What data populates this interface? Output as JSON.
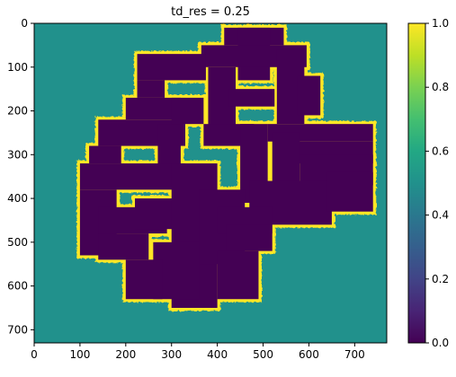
{
  "chart_data": {
    "type": "heatmap",
    "title": "td_res = 0.25",
    "xlabel": "",
    "ylabel": "",
    "x_range": [
      0,
      770
    ],
    "y_range": [
      0,
      730
    ],
    "y_inverted": true,
    "x_ticks": [
      0,
      100,
      200,
      300,
      400,
      500,
      600,
      700
    ],
    "y_ticks": [
      0,
      100,
      200,
      300,
      400,
      500,
      600,
      700
    ],
    "value_range": [
      0,
      1
    ],
    "colormap": "viridis",
    "colors": {
      "background": "#21918c",
      "free_space": "#440154",
      "boundary": "#fde725"
    },
    "levels": {
      "background": 0.5,
      "free_space": 0.0,
      "boundary": 1.0
    },
    "colorbar": {
      "ticks": [
        0.0,
        0.2,
        0.4,
        0.6,
        0.8,
        1.0
      ],
      "tick_labels": [
        "0.0",
        "0.2",
        "0.4",
        "0.6",
        "0.8",
        "1.0"
      ]
    },
    "maze_rects": [
      [
        415,
        10,
        130,
        40
      ],
      [
        445,
        10,
        70,
        120
      ],
      [
        365,
        50,
        230,
        50
      ],
      [
        380,
        100,
        60,
        140
      ],
      [
        225,
        70,
        150,
        60
      ],
      [
        225,
        130,
        60,
        40
      ],
      [
        200,
        170,
        120,
        50
      ],
      [
        530,
        60,
        60,
        170
      ],
      [
        575,
        120,
        50,
        90
      ],
      [
        425,
        150,
        100,
        40
      ],
      [
        140,
        220,
        190,
        60
      ],
      [
        120,
        280,
        70,
        40
      ],
      [
        270,
        230,
        50,
        120
      ],
      [
        300,
        170,
        70,
        60
      ],
      [
        370,
        230,
        110,
        50
      ],
      [
        450,
        230,
        60,
        180
      ],
      [
        510,
        230,
        230,
        40
      ],
      [
        560,
        270,
        180,
        50
      ],
      [
        520,
        250,
        60,
        150
      ],
      [
        580,
        300,
        160,
        70
      ],
      [
        470,
        360,
        180,
        100
      ],
      [
        640,
        340,
        100,
        90
      ],
      [
        100,
        320,
        230,
        60
      ],
      [
        100,
        380,
        80,
        150
      ],
      [
        140,
        420,
        150,
        60
      ],
      [
        140,
        480,
        110,
        60
      ],
      [
        220,
        400,
        120,
        70
      ],
      [
        300,
        320,
        100,
        330
      ],
      [
        360,
        380,
        100,
        170
      ],
      [
        260,
        500,
        100,
        130
      ],
      [
        200,
        540,
        80,
        90
      ],
      [
        400,
        420,
        120,
        60
      ],
      [
        420,
        460,
        100,
        60
      ],
      [
        400,
        520,
        90,
        110
      ]
    ]
  }
}
